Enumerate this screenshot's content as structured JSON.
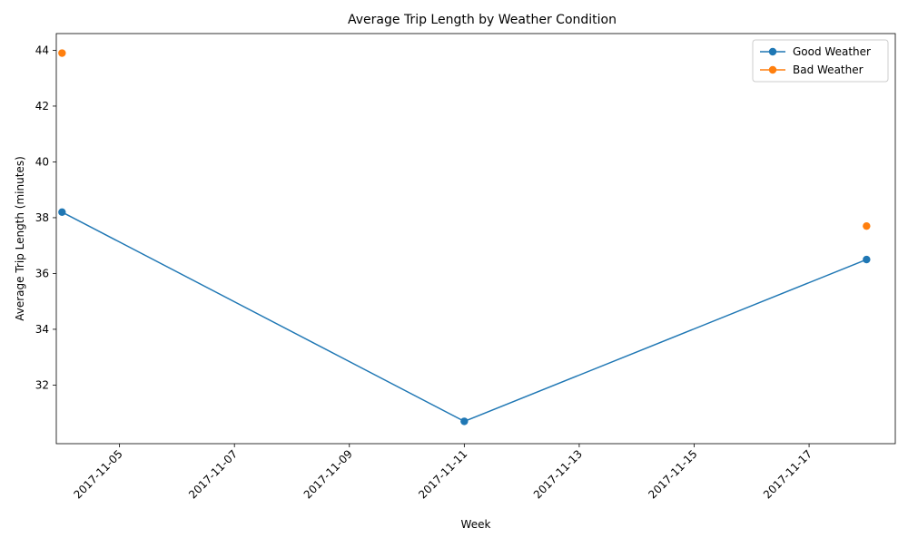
{
  "chart_data": {
    "type": "line",
    "title": "Average Trip Length by Weather Condition",
    "xlabel": "Week",
    "ylabel": "Average Trip Length (minutes)",
    "x_axis": "date",
    "xlim": [
      "2017-11-03",
      "2017-11-18"
    ],
    "ylim": [
      29.9,
      44.6
    ],
    "x_ticks": [
      "2017-11-05",
      "2017-11-07",
      "2017-11-09",
      "2017-11-11",
      "2017-11-13",
      "2017-11-15",
      "2017-11-17"
    ],
    "y_ticks": [
      32,
      34,
      36,
      38,
      40,
      42,
      44
    ],
    "grid": false,
    "legend_position": "top-right",
    "series": [
      {
        "name": "Good Weather",
        "color": "#1f77b4",
        "points": [
          {
            "x": "2017-11-04",
            "y": 38.2
          },
          {
            "x": "2017-11-11",
            "y": 30.7
          },
          {
            "x": "2017-11-18",
            "y": 36.5
          }
        ]
      },
      {
        "name": "Bad Weather",
        "color": "#ff7f0e",
        "points": [
          {
            "x": "2017-11-04",
            "y": 43.9
          },
          {
            "x": "2017-11-11",
            "y": null
          },
          {
            "x": "2017-11-18",
            "y": 37.7
          }
        ]
      }
    ]
  }
}
